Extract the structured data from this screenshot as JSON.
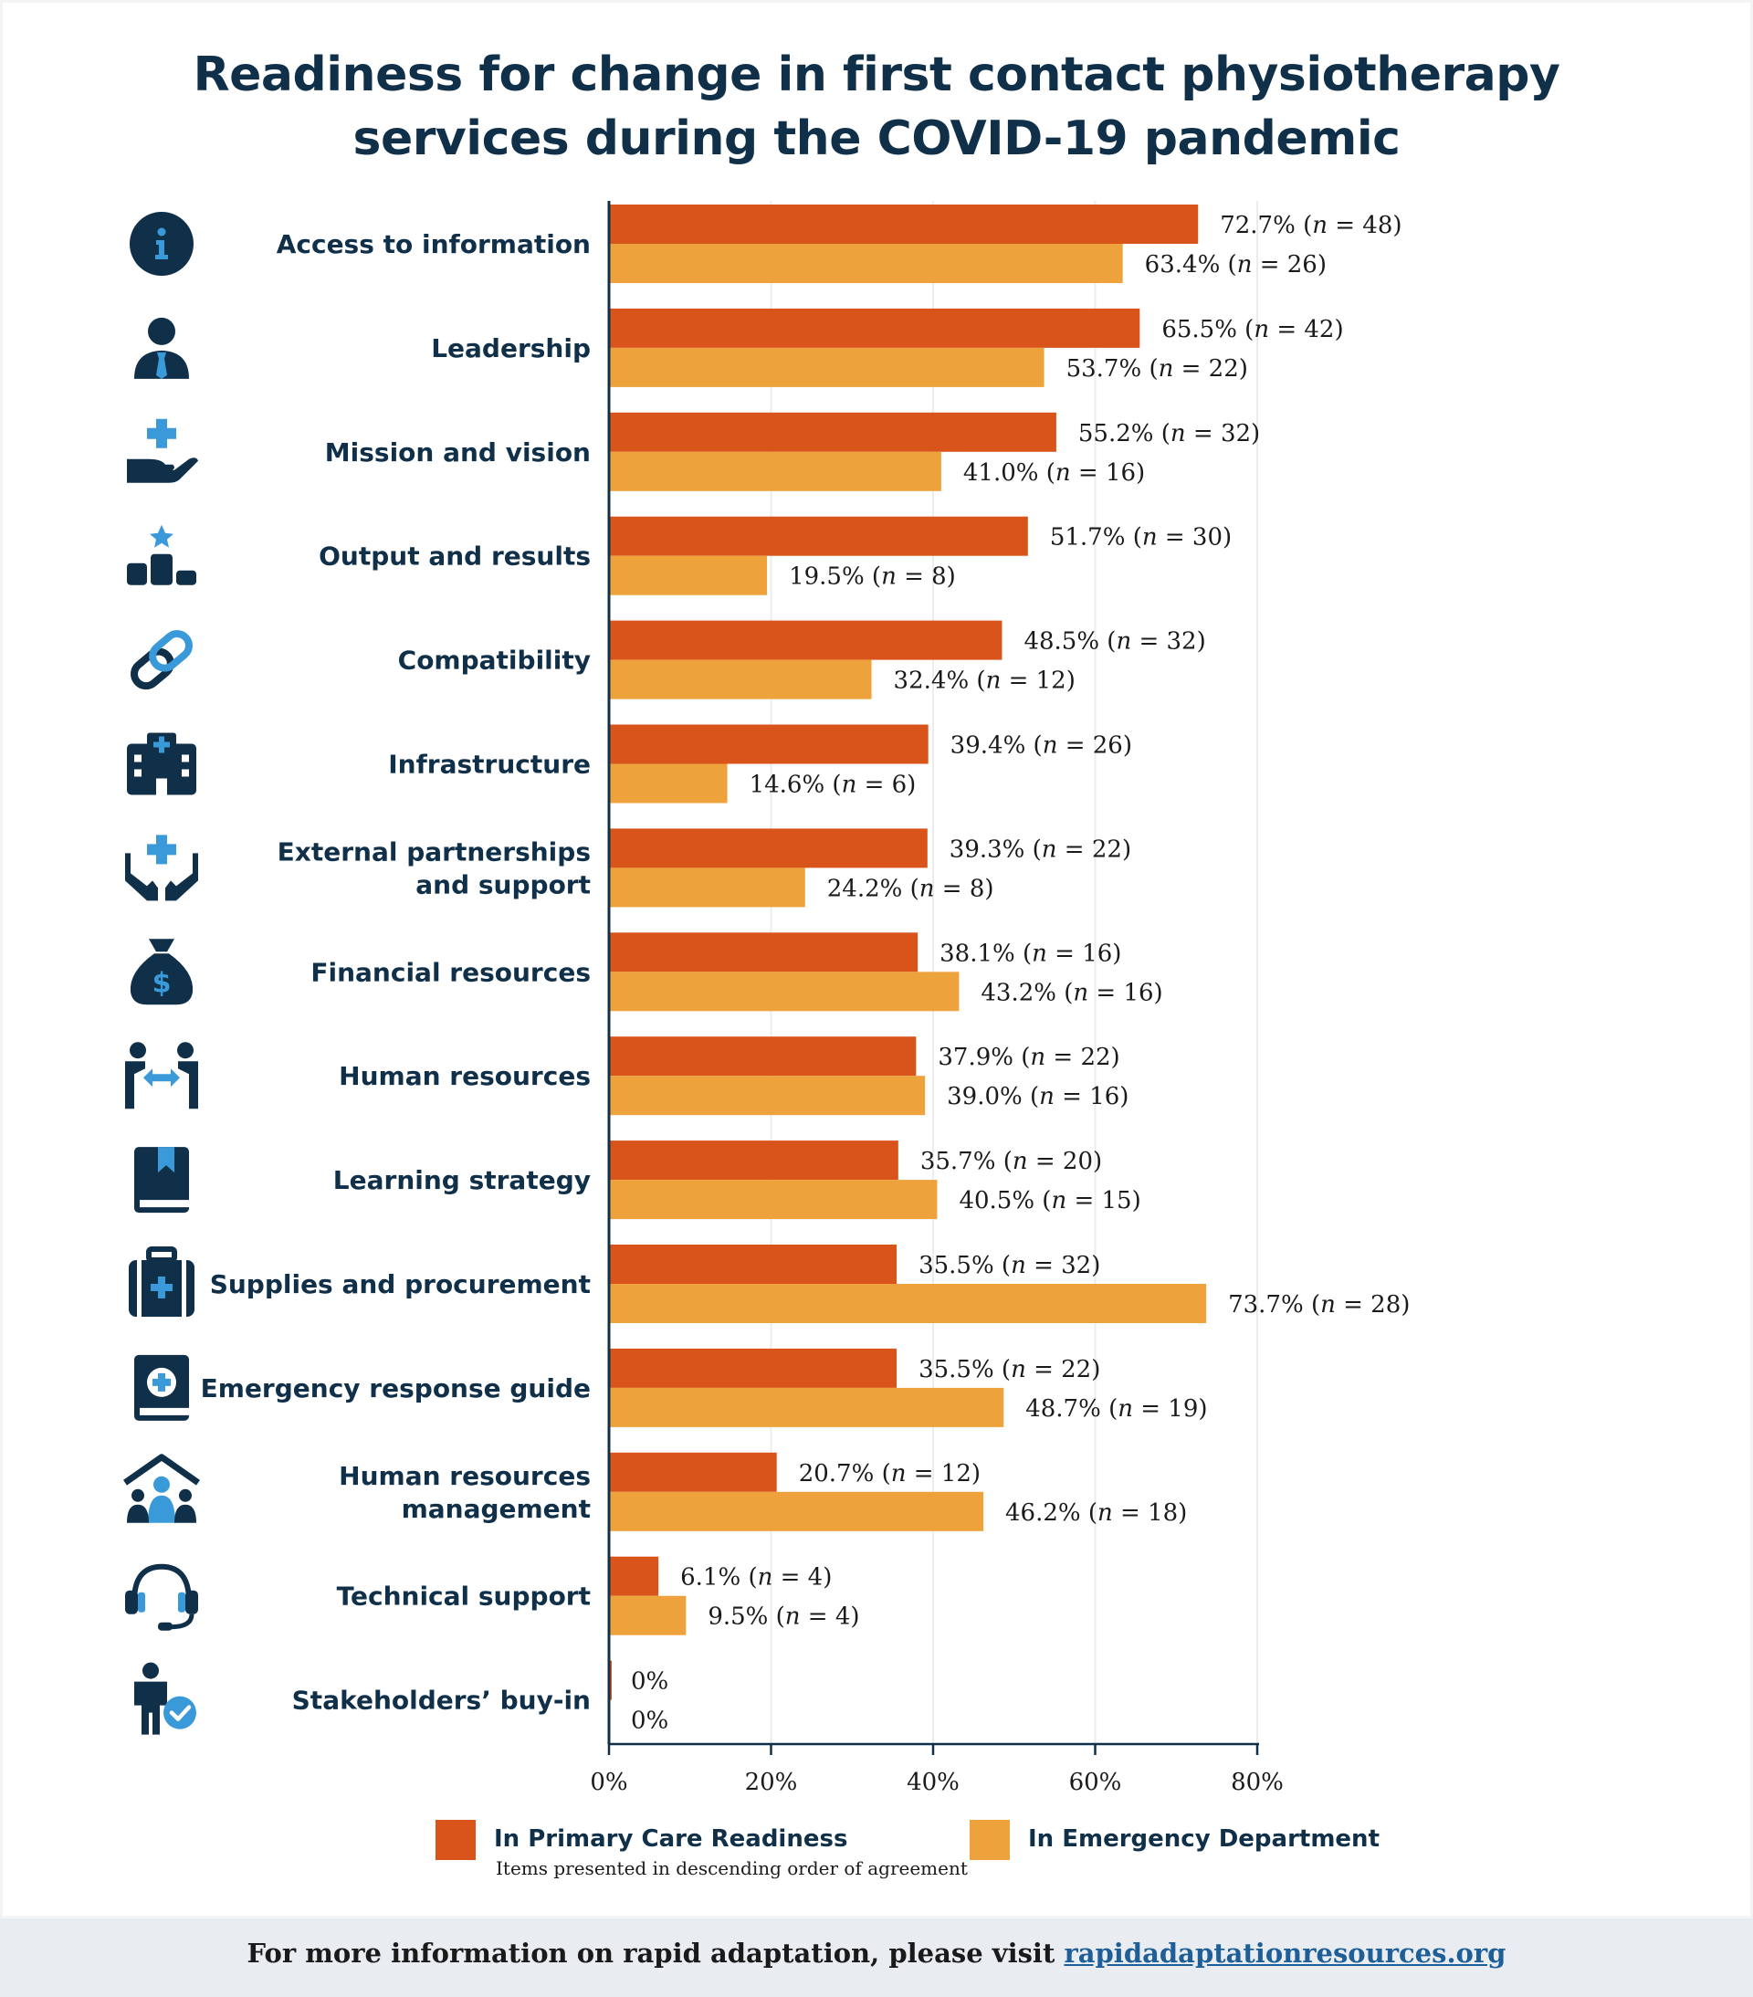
{
  "title_line1": "Readiness for change in first contact physiotherapy",
  "title_line2": "services during the COVID-19 pandemic",
  "colors": {
    "primary": "#d9541b",
    "emergency": "#eda23c",
    "navy": "#10304a",
    "icon_blue": "#3a9ad9"
  },
  "chart_data": {
    "type": "bar",
    "orientation": "horizontal",
    "xlim": [
      0,
      80
    ],
    "x_ticks": [
      "0%",
      "20%",
      "40%",
      "60%",
      "80%"
    ],
    "categories": [
      {
        "lines": [
          "Access to information"
        ],
        "icon": "info-icon"
      },
      {
        "lines": [
          "Leadership"
        ],
        "icon": "leader-person-icon"
      },
      {
        "lines": [
          "Mission and vision"
        ],
        "icon": "hand-plus-icon"
      },
      {
        "lines": [
          "Output and results"
        ],
        "icon": "podium-star-icon"
      },
      {
        "lines": [
          "Compatibility"
        ],
        "icon": "link-icon"
      },
      {
        "lines": [
          "Infrastructure"
        ],
        "icon": "hospital-building-icon"
      },
      {
        "lines": [
          "External partnerships",
          "and support"
        ],
        "icon": "hands-plus-icon"
      },
      {
        "lines": [
          "Financial resources"
        ],
        "icon": "money-bag-icon"
      },
      {
        "lines": [
          "Human resources"
        ],
        "icon": "people-exchange-icon"
      },
      {
        "lines": [
          "Learning strategy"
        ],
        "icon": "book-bookmark-icon"
      },
      {
        "lines": [
          "Supplies and procurement"
        ],
        "icon": "medical-kit-icon"
      },
      {
        "lines": [
          "Emergency response guide"
        ],
        "icon": "medical-book-icon"
      },
      {
        "lines": [
          "Human resources",
          "management"
        ],
        "icon": "house-people-icon"
      },
      {
        "lines": [
          "Technical support"
        ],
        "icon": "headset-icon"
      },
      {
        "lines": [
          "Stakeholders’ buy-in"
        ],
        "icon": "person-check-icon"
      }
    ],
    "series": [
      {
        "name": "In Primary Care Readiness",
        "values": [
          72.7,
          65.5,
          55.2,
          51.7,
          48.5,
          39.4,
          39.3,
          38.1,
          37.9,
          35.7,
          35.5,
          35.5,
          20.7,
          6.1,
          0
        ],
        "labels": [
          [
            "72.7% (",
            "n",
            " = 48)"
          ],
          [
            "65.5% (",
            "n",
            " = 42)"
          ],
          [
            "55.2% (",
            "n",
            " = 32)"
          ],
          [
            "51.7% (",
            "n",
            " = 30)"
          ],
          [
            "48.5% (",
            "n",
            " = 32)"
          ],
          [
            "39.4% (",
            "n",
            " = 26)"
          ],
          [
            "39.3% (",
            "n",
            " = 22)"
          ],
          [
            "38.1% (",
            "n",
            " = 16)"
          ],
          [
            "37.9% (",
            "n",
            " = 22)"
          ],
          [
            "35.7% (",
            "n",
            " = 20)"
          ],
          [
            "35.5% (",
            "n",
            " = 32)"
          ],
          [
            "35.5% (",
            "n",
            " = 22)"
          ],
          [
            "20.7% (",
            "n",
            " = 12)"
          ],
          [
            "6.1% (",
            "n",
            " = 4)"
          ],
          [
            "0%"
          ]
        ]
      },
      {
        "name": "In Emergency Department",
        "values": [
          63.4,
          53.7,
          41.0,
          19.5,
          32.4,
          14.6,
          24.2,
          43.2,
          39.0,
          40.5,
          73.7,
          48.7,
          46.2,
          9.5,
          0
        ],
        "labels": [
          [
            "63.4% (",
            "n",
            " = 26)"
          ],
          [
            "53.7% (",
            "n",
            " = 22)"
          ],
          [
            "41.0% (",
            "n",
            " = 16)"
          ],
          [
            "19.5% (",
            "n",
            " = 8)"
          ],
          [
            "32.4% (",
            "n",
            " = 12)"
          ],
          [
            "14.6% (",
            "n",
            " = 6)"
          ],
          [
            "24.2% (",
            "n",
            " = 8)"
          ],
          [
            "43.2% (",
            "n",
            " = 16)"
          ],
          [
            "39.0% (",
            "n",
            " = 16)"
          ],
          [
            "40.5% (",
            "n",
            " = 15)"
          ],
          [
            "73.7% (",
            "n",
            " = 28)"
          ],
          [
            "48.7% (",
            "n",
            " = 19)"
          ],
          [
            "46.2% (",
            "n",
            " = 18)"
          ],
          [
            "9.5% (",
            "n",
            " = 4)"
          ],
          [
            "0%"
          ]
        ]
      }
    ]
  },
  "legend": {
    "primary_label": "In Primary Care Readiness",
    "emergency_label": "In Emergency Department",
    "note": "Items presented in descending order of agreement"
  },
  "footer": {
    "text": "For more information on rapid adaptation, please visit ",
    "link": "rapidadaptationresources.org"
  }
}
